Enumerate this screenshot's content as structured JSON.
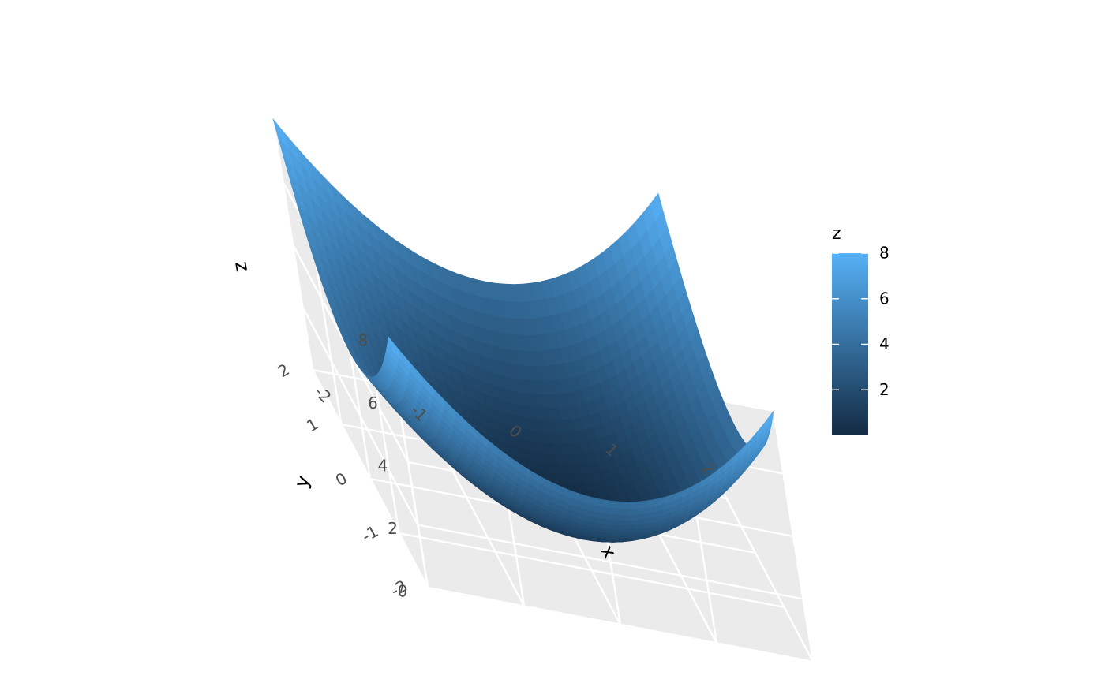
{
  "chart_data": {
    "type": "surface",
    "function": "z = x^2 + y^2",
    "x": [
      -2,
      -1,
      0,
      1,
      2
    ],
    "y": [
      -2,
      -1,
      0,
      1,
      2
    ],
    "z_grid": [
      [
        8,
        5,
        4,
        5,
        8
      ],
      [
        5,
        2,
        1,
        2,
        5
      ],
      [
        4,
        1,
        0,
        1,
        4
      ],
      [
        5,
        2,
        1,
        2,
        5
      ],
      [
        8,
        5,
        4,
        5,
        8
      ]
    ],
    "xlim": [
      -2,
      2
    ],
    "ylim": [
      -2,
      2
    ],
    "zlim": [
      0,
      8
    ],
    "xlabel": "x",
    "ylabel": "y",
    "zlabel": "z",
    "x_ticks": [
      "-2",
      "-1",
      "0",
      "1",
      "2"
    ],
    "y_ticks": [
      "-2",
      "-1",
      "0",
      "1",
      "2"
    ],
    "z_ticks": [
      "0",
      "2",
      "4",
      "6",
      "8"
    ],
    "grid": true,
    "panel_color": "#EBEBEB",
    "grid_color": "#FFFFFF",
    "colorscale": [
      "#132B43",
      "#56B1F7"
    ],
    "legend": {
      "title": "z",
      "position": "right",
      "ticks": [
        "2",
        "4",
        "6",
        "8"
      ],
      "tick_values": [
        2,
        4,
        6,
        8
      ],
      "range": [
        0,
        8
      ]
    }
  }
}
